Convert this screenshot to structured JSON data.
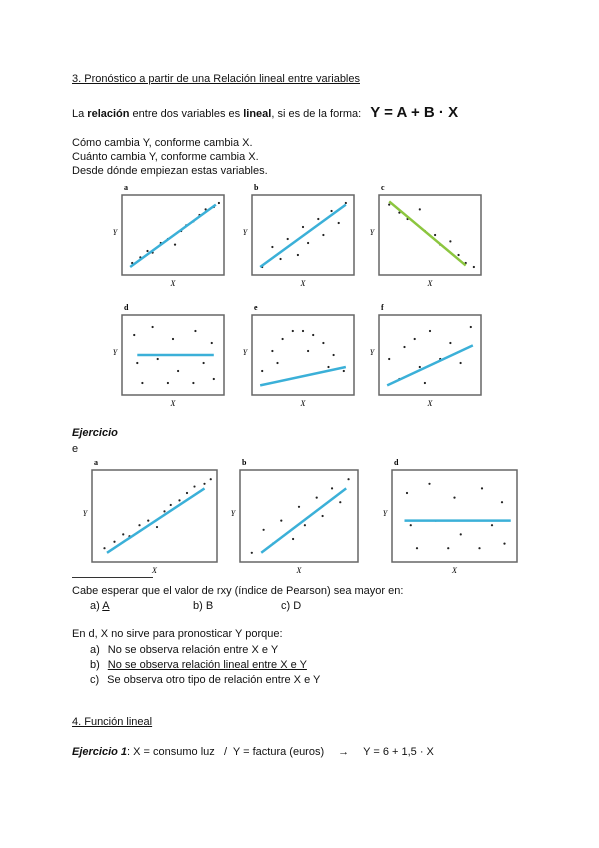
{
  "section3": {
    "title": "3. Pronóstico a partir de una Relación lineal entre variables",
    "definition": {
      "prefix": "La ",
      "bold1": "relación",
      "mid": " entre dos variables es ",
      "bold2": "lineal",
      "suffix": ", si es de la forma:",
      "formula": "Y = A + B · X"
    },
    "lines": [
      "Cómo cambia Y, conforme cambia X.",
      "Cuánto cambia Y, conforme cambia X.",
      "Desde dónde empiezan estas variables."
    ]
  },
  "figures": [
    {
      "label": "a",
      "y_label": "Y",
      "x_label": "X"
    },
    {
      "label": "b",
      "y_label": "Y",
      "x_label": "X"
    },
    {
      "label": "c",
      "y_label": "Y",
      "x_label": "X"
    },
    {
      "label": "d",
      "y_label": "Y",
      "x_label": "X"
    },
    {
      "label": "e",
      "y_label": "Y",
      "x_label": "X"
    },
    {
      "label": "f",
      "y_label": "Y",
      "x_label": "X"
    }
  ],
  "exercise": {
    "title": "Ejercicio",
    "note": "e",
    "figures": [
      {
        "label": "a",
        "y_label": "Y",
        "x_label": "X"
      },
      {
        "label": "b",
        "y_label": "Y",
        "x_label": "X"
      },
      {
        "label": "d",
        "y_label": "Y",
        "x_label": "X"
      }
    ],
    "question1": "Cabe esperar que el valor de rxy (índice de Pearson) sea mayor en:",
    "options1": [
      {
        "letter": "a)",
        "text": "A"
      },
      {
        "letter": "b)",
        "text": "B"
      },
      {
        "letter": "c)",
        "text": "D"
      }
    ],
    "question2": "En d, X no sirve para pronosticar Y porque:",
    "options2": [
      {
        "letter": "a)",
        "text": "No se observa relación entre X e Y"
      },
      {
        "letter": "b)",
        "text": "No se observa relación lineal entre X e Y"
      },
      {
        "letter": "c)",
        "text": "Se observa otro tipo de relación entre X e Y"
      }
    ]
  },
  "section4": {
    "title": "4. Función lineal",
    "exercise_label": "Ejercicio 1",
    "colon": ":",
    "text": " X = consumo luz   /  Y = factura (euros)",
    "arrow": "→",
    "formula": "Y = 6 + 1,5 · X"
  }
}
